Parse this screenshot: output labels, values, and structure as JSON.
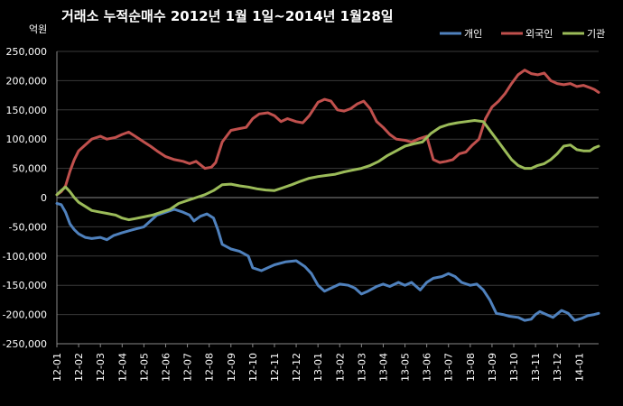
{
  "chart_data": {
    "type": "line",
    "title": "거래소 누적순매수 2012년 1월 1일~2014년 1월28일",
    "unit_label": "억원",
    "ylim": [
      -250000,
      250000
    ],
    "yticks": [
      250000,
      200000,
      150000,
      100000,
      50000,
      0,
      -50000,
      -100000,
      -150000,
      -200000,
      -250000
    ],
    "ytick_labels": [
      "250,000",
      "200,000",
      "150,000",
      "100,000",
      "50,000",
      "0",
      "-50,000",
      "-100,000",
      "-150,000",
      "-200,000",
      "-250,000"
    ],
    "x_tick_labels": [
      "12-01",
      "12-02",
      "12-03",
      "12-04",
      "12-05",
      "12-06",
      "12-07",
      "12-08",
      "12-09",
      "12-10",
      "12-11",
      "12-12",
      "13-01",
      "13-02",
      "13-03",
      "13-04",
      "13-05",
      "13-06",
      "13-07",
      "13-08",
      "13-09",
      "13-10",
      "13-11",
      "13-12",
      "14-01"
    ],
    "xlim": [
      0,
      24.9
    ],
    "grid": true,
    "legend_position": "top-right",
    "series": [
      {
        "name": "개인",
        "color": "#4f81bd",
        "points": [
          [
            0,
            -10000
          ],
          [
            0.2,
            -12000
          ],
          [
            0.4,
            -25000
          ],
          [
            0.6,
            -45000
          ],
          [
            0.8,
            -55000
          ],
          [
            1.0,
            -62000
          ],
          [
            1.3,
            -68000
          ],
          [
            1.6,
            -70000
          ],
          [
            2.0,
            -68000
          ],
          [
            2.3,
            -72000
          ],
          [
            2.6,
            -65000
          ],
          [
            3.0,
            -60000
          ],
          [
            3.5,
            -55000
          ],
          [
            4.0,
            -50000
          ],
          [
            4.3,
            -40000
          ],
          [
            4.6,
            -30000
          ],
          [
            5.0,
            -25000
          ],
          [
            5.4,
            -20000
          ],
          [
            5.8,
            -25000
          ],
          [
            6.1,
            -30000
          ],
          [
            6.3,
            -40000
          ],
          [
            6.6,
            -32000
          ],
          [
            6.9,
            -28000
          ],
          [
            7.2,
            -35000
          ],
          [
            7.4,
            -55000
          ],
          [
            7.6,
            -80000
          ],
          [
            8.0,
            -88000
          ],
          [
            8.4,
            -92000
          ],
          [
            8.8,
            -100000
          ],
          [
            9.0,
            -120000
          ],
          [
            9.4,
            -125000
          ],
          [
            9.7,
            -120000
          ],
          [
            10.0,
            -115000
          ],
          [
            10.5,
            -110000
          ],
          [
            11.0,
            -108000
          ],
          [
            11.4,
            -118000
          ],
          [
            11.7,
            -130000
          ],
          [
            12.0,
            -150000
          ],
          [
            12.3,
            -160000
          ],
          [
            12.6,
            -155000
          ],
          [
            13.0,
            -148000
          ],
          [
            13.4,
            -150000
          ],
          [
            13.7,
            -155000
          ],
          [
            14.0,
            -165000
          ],
          [
            14.3,
            -160000
          ],
          [
            14.7,
            -152000
          ],
          [
            15.0,
            -148000
          ],
          [
            15.3,
            -152000
          ],
          [
            15.7,
            -145000
          ],
          [
            16.0,
            -150000
          ],
          [
            16.3,
            -145000
          ],
          [
            16.7,
            -158000
          ],
          [
            17.0,
            -145000
          ],
          [
            17.3,
            -138000
          ],
          [
            17.7,
            -135000
          ],
          [
            18.0,
            -130000
          ],
          [
            18.3,
            -135000
          ],
          [
            18.6,
            -145000
          ],
          [
            19.0,
            -150000
          ],
          [
            19.3,
            -148000
          ],
          [
            19.6,
            -158000
          ],
          [
            19.9,
            -175000
          ],
          [
            20.2,
            -198000
          ],
          [
            20.5,
            -200000
          ],
          [
            20.8,
            -203000
          ],
          [
            21.2,
            -205000
          ],
          [
            21.5,
            -210000
          ],
          [
            21.8,
            -208000
          ],
          [
            22.0,
            -200000
          ],
          [
            22.2,
            -195000
          ],
          [
            22.5,
            -200000
          ],
          [
            22.8,
            -205000
          ],
          [
            23.2,
            -193000
          ],
          [
            23.5,
            -198000
          ],
          [
            23.8,
            -210000
          ],
          [
            24.1,
            -207000
          ],
          [
            24.4,
            -202000
          ],
          [
            24.7,
            -200000
          ],
          [
            24.9,
            -198000
          ]
        ]
      },
      {
        "name": "외국인",
        "color": "#c0504d",
        "points": [
          [
            0,
            5000
          ],
          [
            0.2,
            10000
          ],
          [
            0.4,
            20000
          ],
          [
            0.6,
            45000
          ],
          [
            0.8,
            65000
          ],
          [
            1.0,
            80000
          ],
          [
            1.3,
            90000
          ],
          [
            1.6,
            100000
          ],
          [
            2.0,
            105000
          ],
          [
            2.3,
            100000
          ],
          [
            2.7,
            103000
          ],
          [
            3.0,
            108000
          ],
          [
            3.3,
            112000
          ],
          [
            3.6,
            105000
          ],
          [
            4.0,
            95000
          ],
          [
            4.3,
            88000
          ],
          [
            4.6,
            80000
          ],
          [
            5.0,
            70000
          ],
          [
            5.4,
            65000
          ],
          [
            5.8,
            62000
          ],
          [
            6.1,
            58000
          ],
          [
            6.4,
            62000
          ],
          [
            6.8,
            50000
          ],
          [
            7.1,
            52000
          ],
          [
            7.3,
            60000
          ],
          [
            7.6,
            95000
          ],
          [
            8.0,
            115000
          ],
          [
            8.4,
            118000
          ],
          [
            8.7,
            120000
          ],
          [
            9.0,
            135000
          ],
          [
            9.3,
            143000
          ],
          [
            9.7,
            145000
          ],
          [
            10.0,
            140000
          ],
          [
            10.3,
            130000
          ],
          [
            10.6,
            135000
          ],
          [
            11.0,
            130000
          ],
          [
            11.3,
            128000
          ],
          [
            11.6,
            140000
          ],
          [
            12.0,
            163000
          ],
          [
            12.3,
            168000
          ],
          [
            12.6,
            165000
          ],
          [
            12.9,
            150000
          ],
          [
            13.2,
            148000
          ],
          [
            13.5,
            152000
          ],
          [
            13.8,
            160000
          ],
          [
            14.1,
            165000
          ],
          [
            14.4,
            152000
          ],
          [
            14.7,
            130000
          ],
          [
            15.0,
            120000
          ],
          [
            15.3,
            108000
          ],
          [
            15.6,
            100000
          ],
          [
            16.0,
            98000
          ],
          [
            16.3,
            95000
          ],
          [
            16.6,
            100000
          ],
          [
            17.0,
            105000
          ],
          [
            17.3,
            65000
          ],
          [
            17.6,
            60000
          ],
          [
            17.9,
            62000
          ],
          [
            18.2,
            65000
          ],
          [
            18.5,
            75000
          ],
          [
            18.8,
            78000
          ],
          [
            19.1,
            90000
          ],
          [
            19.4,
            100000
          ],
          [
            19.7,
            135000
          ],
          [
            20.0,
            155000
          ],
          [
            20.3,
            165000
          ],
          [
            20.6,
            178000
          ],
          [
            20.9,
            195000
          ],
          [
            21.2,
            210000
          ],
          [
            21.5,
            218000
          ],
          [
            21.8,
            212000
          ],
          [
            22.1,
            210000
          ],
          [
            22.4,
            213000
          ],
          [
            22.7,
            200000
          ],
          [
            23.0,
            195000
          ],
          [
            23.3,
            193000
          ],
          [
            23.6,
            195000
          ],
          [
            23.9,
            190000
          ],
          [
            24.2,
            192000
          ],
          [
            24.5,
            188000
          ],
          [
            24.7,
            185000
          ],
          [
            24.9,
            180000
          ]
        ]
      },
      {
        "name": "기관",
        "color": "#9bbb59",
        "points": [
          [
            0,
            5000
          ],
          [
            0.2,
            12000
          ],
          [
            0.4,
            18000
          ],
          [
            0.6,
            10000
          ],
          [
            0.8,
            0
          ],
          [
            1.0,
            -8000
          ],
          [
            1.3,
            -15000
          ],
          [
            1.6,
            -22000
          ],
          [
            2.0,
            -25000
          ],
          [
            2.3,
            -27000
          ],
          [
            2.7,
            -30000
          ],
          [
            3.0,
            -35000
          ],
          [
            3.3,
            -38000
          ],
          [
            3.6,
            -36000
          ],
          [
            4.0,
            -33000
          ],
          [
            4.4,
            -30000
          ],
          [
            4.8,
            -25000
          ],
          [
            5.2,
            -20000
          ],
          [
            5.6,
            -10000
          ],
          [
            6.0,
            -5000
          ],
          [
            6.4,
            0
          ],
          [
            6.8,
            5000
          ],
          [
            7.2,
            12000
          ],
          [
            7.6,
            22000
          ],
          [
            8.0,
            23000
          ],
          [
            8.4,
            20000
          ],
          [
            8.8,
            18000
          ],
          [
            9.2,
            15000
          ],
          [
            9.6,
            13000
          ],
          [
            10.0,
            12000
          ],
          [
            10.4,
            17000
          ],
          [
            10.8,
            22000
          ],
          [
            11.2,
            28000
          ],
          [
            11.6,
            33000
          ],
          [
            12.0,
            36000
          ],
          [
            12.4,
            38000
          ],
          [
            12.8,
            40000
          ],
          [
            13.2,
            44000
          ],
          [
            13.6,
            47000
          ],
          [
            14.0,
            50000
          ],
          [
            14.4,
            55000
          ],
          [
            14.8,
            62000
          ],
          [
            15.2,
            72000
          ],
          [
            15.6,
            80000
          ],
          [
            16.0,
            88000
          ],
          [
            16.4,
            92000
          ],
          [
            16.8,
            95000
          ],
          [
            17.2,
            110000
          ],
          [
            17.6,
            120000
          ],
          [
            18.0,
            125000
          ],
          [
            18.4,
            128000
          ],
          [
            18.8,
            130000
          ],
          [
            19.2,
            132000
          ],
          [
            19.6,
            130000
          ],
          [
            20.0,
            110000
          ],
          [
            20.3,
            95000
          ],
          [
            20.6,
            80000
          ],
          [
            20.9,
            65000
          ],
          [
            21.2,
            55000
          ],
          [
            21.5,
            50000
          ],
          [
            21.8,
            50000
          ],
          [
            22.1,
            55000
          ],
          [
            22.4,
            58000
          ],
          [
            22.7,
            65000
          ],
          [
            23.0,
            75000
          ],
          [
            23.3,
            88000
          ],
          [
            23.6,
            90000
          ],
          [
            23.9,
            82000
          ],
          [
            24.2,
            80000
          ],
          [
            24.5,
            80000
          ],
          [
            24.7,
            85000
          ],
          [
            24.9,
            88000
          ]
        ]
      }
    ]
  }
}
